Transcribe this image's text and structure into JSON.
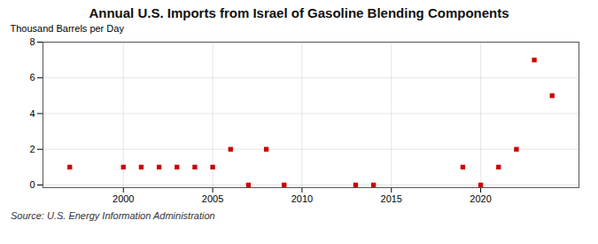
{
  "chart_data": {
    "type": "scatter",
    "title": "Annual U.S. Imports from Israel of Gasoline Blending Components",
    "y_label": "Thousand Barrels per Day",
    "annotations": [
      "Source: U.S. Energy Information Administration"
    ],
    "x": [
      1997,
      2000,
      2001,
      2002,
      2003,
      2004,
      2005,
      2006,
      2007,
      2008,
      2009,
      2013,
      2014,
      2019,
      2020,
      2021,
      2022,
      2023,
      2024
    ],
    "values": [
      1,
      1,
      1,
      1,
      1,
      1,
      1,
      2,
      0,
      2,
      0,
      0,
      0,
      1,
      0,
      1,
      2,
      7,
      5
    ],
    "color": "#cc0000",
    "marker": "square",
    "xlim": [
      1995.5,
      2025.5
    ],
    "ylim": [
      -0.15,
      8
    ],
    "xticks": [
      2000,
      2005,
      2010,
      2015,
      2020
    ],
    "yticks": [
      0,
      2,
      4,
      6,
      8
    ],
    "grid": true
  }
}
